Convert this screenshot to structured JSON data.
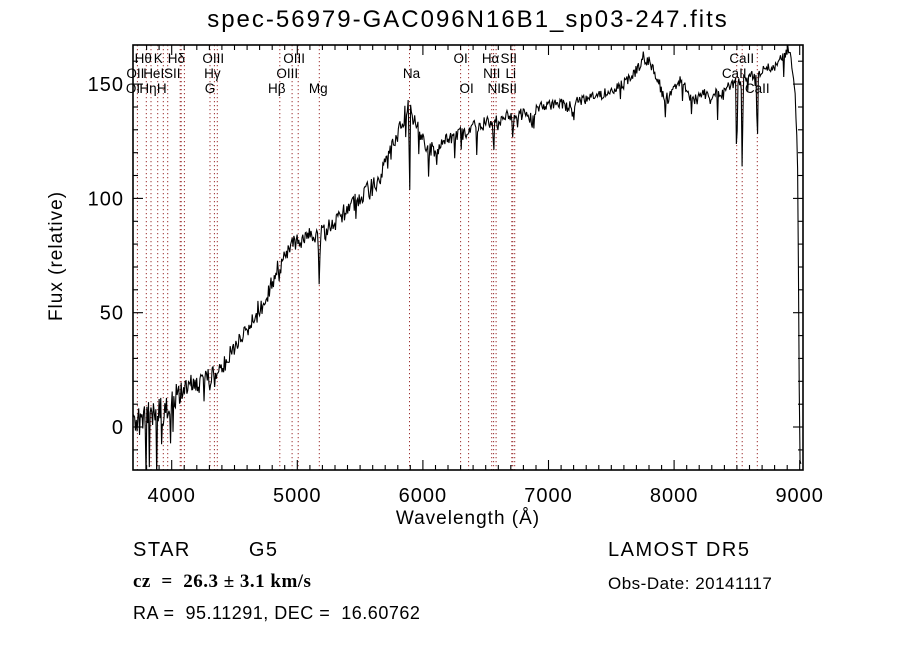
{
  "title": "spec-56979-GAC096N16B1_sp03-247.fits",
  "footer": {
    "class_label": "STAR",
    "subclass_label": "G5",
    "cz_label": "cz  =  26.3 ± 3.1 km/s",
    "radec_label": "RA =  95.11291, DEC =  16.60762",
    "survey_label": "LAMOST DR5",
    "obsdate_label": "Obs-Date: 20141117"
  },
  "chart_data": {
    "type": "line",
    "title": "spec-56979-GAC096N16B1_sp03-247.fits",
    "xlabel": "Wavelength (Å)",
    "ylabel": "Flux (relative)",
    "xlim": [
      3692,
      9026
    ],
    "ylim": [
      -18.8,
      167.1
    ],
    "x_major_ticks": [
      4000,
      5000,
      6000,
      7000,
      8000,
      9000
    ],
    "x_minor_step": 100,
    "y_major_ticks": [
      0,
      50,
      100,
      150
    ],
    "y_minor_step": 10,
    "grid": false,
    "legend": null,
    "series_color": "#000000",
    "marker_color": "#9c2f2f",
    "spectral_lines": [
      {
        "label": "OII",
        "wavelength": 3727,
        "row": 2,
        "dx": -2
      },
      {
        "label": "Hθ",
        "wavelength": 3798,
        "row": 1,
        "dx": -3
      },
      {
        "label": "Hη",
        "wavelength": 3835,
        "row": 3,
        "dx": -3
      },
      {
        "label": "HeI",
        "wavelength": 3889,
        "row": 2,
        "dx": -4
      },
      {
        "label": "K",
        "wavelength": 3933,
        "row": 1,
        "dx": -5
      },
      {
        "label": "H",
        "wavelength": 3968,
        "row": 3,
        "dx": -6
      },
      {
        "label": "SII",
        "wavelength": 4068,
        "row": 2,
        "dx": -8
      },
      {
        "label": "Hδ",
        "wavelength": 4101,
        "row": 1,
        "dx": -8
      },
      {
        "label": "G",
        "wavelength": 4305,
        "row": 3,
        "dx": 0
      },
      {
        "label": "Hγ",
        "wavelength": 4340,
        "row": 2,
        "dx": -2
      },
      {
        "label": "OIII",
        "wavelength": 4363,
        "row": 1,
        "dx": -4
      },
      {
        "label": "Hβ",
        "wavelength": 4861,
        "row": 3,
        "dx": -3
      },
      {
        "label": "OIII",
        "wavelength": 4959,
        "row": 1,
        "dx": 2
      },
      {
        "label": "OIII",
        "wavelength": 5007,
        "row": 2,
        "dx": -11
      },
      {
        "label": "Mg",
        "wavelength": 5175,
        "row": 3,
        "dx": -1
      },
      {
        "label": "Na",
        "wavelength": 5893,
        "row": 2,
        "dx": 2
      },
      {
        "label": "OI",
        "wavelength": 6300,
        "row": 1,
        "dx": 0
      },
      {
        "label": "OI",
        "wavelength": 6364,
        "row": 3,
        "dx": -2
      },
      {
        "label": "NII",
        "wavelength": 6548,
        "row": 2,
        "dx": 0
      },
      {
        "label": "Hα",
        "wavelength": 6563,
        "row": 1,
        "dx": -3
      },
      {
        "label": "NII",
        "wavelength": 6583,
        "row": 3,
        "dx": 0
      },
      {
        "label": "Li",
        "wavelength": 6708,
        "row": 2,
        "dx": -1
      },
      {
        "label": "SII",
        "wavelength": 6716,
        "row": 1,
        "dx": -4
      },
      {
        "label": "SII",
        "wavelength": 6731,
        "row": 3,
        "dx": -6
      },
      {
        "label": "CaII",
        "wavelength": 8498,
        "row": 1,
        "dx": 5
      },
      {
        "label": "CaII",
        "wavelength": 8542,
        "row": 2,
        "dx": -8
      },
      {
        "label": "CaII",
        "wavelength": 8662,
        "row": 3,
        "dx": 0
      },
      {
        "label": "OI",
        "wavelength": 3700,
        "row": 3,
        "dx": -1,
        "line": false
      }
    ],
    "extra_marker_wavelengths": [
      4076
    ],
    "series": [
      {
        "name": "spectrum",
        "sample_step": 6.5,
        "lambda_end": 9010,
        "noise_seed": 20141117,
        "envelope": [
          [
            3692,
            0
          ],
          [
            3720,
            2
          ],
          [
            3760,
            3
          ],
          [
            3800,
            5
          ],
          [
            3840,
            5
          ],
          [
            3880,
            7
          ],
          [
            3920,
            9
          ],
          [
            3960,
            10
          ],
          [
            4000,
            11
          ],
          [
            4040,
            14
          ],
          [
            4080,
            16
          ],
          [
            4120,
            18
          ],
          [
            4160,
            19
          ],
          [
            4200,
            17
          ],
          [
            4240,
            19
          ],
          [
            4280,
            21
          ],
          [
            4320,
            23
          ],
          [
            4360,
            25
          ],
          [
            4400,
            27
          ],
          [
            4440,
            29
          ],
          [
            4480,
            33
          ],
          [
            4520,
            36
          ],
          [
            4560,
            39
          ],
          [
            4600,
            43
          ],
          [
            4640,
            46
          ],
          [
            4680,
            49
          ],
          [
            4720,
            53
          ],
          [
            4760,
            58
          ],
          [
            4800,
            63
          ],
          [
            4840,
            69
          ],
          [
            4880,
            74
          ],
          [
            4920,
            77
          ],
          [
            4960,
            80
          ],
          [
            5000,
            81
          ],
          [
            5040,
            82
          ],
          [
            5080,
            83
          ],
          [
            5120,
            84
          ],
          [
            5160,
            84
          ],
          [
            5200,
            85
          ],
          [
            5240,
            87
          ],
          [
            5280,
            89
          ],
          [
            5320,
            91
          ],
          [
            5360,
            93
          ],
          [
            5400,
            95
          ],
          [
            5440,
            97
          ],
          [
            5480,
            99
          ],
          [
            5520,
            101
          ],
          [
            5560,
            103
          ],
          [
            5600,
            105
          ],
          [
            5640,
            108
          ],
          [
            5680,
            112
          ],
          [
            5720,
            117
          ],
          [
            5760,
            122
          ],
          [
            5800,
            128
          ],
          [
            5840,
            134
          ],
          [
            5875,
            140
          ],
          [
            5910,
            137
          ],
          [
            5950,
            132
          ],
          [
            6000,
            126
          ],
          [
            6050,
            122
          ],
          [
            6100,
            121
          ],
          [
            6150,
            123
          ],
          [
            6200,
            126
          ],
          [
            6250,
            127
          ],
          [
            6300,
            128
          ],
          [
            6350,
            129
          ],
          [
            6400,
            131
          ],
          [
            6450,
            132
          ],
          [
            6500,
            133
          ],
          [
            6550,
            134
          ],
          [
            6600,
            134
          ],
          [
            6650,
            136
          ],
          [
            6700,
            136
          ],
          [
            6750,
            136
          ],
          [
            6800,
            137
          ],
          [
            6850,
            135
          ],
          [
            6900,
            139
          ],
          [
            6950,
            140
          ],
          [
            7000,
            141
          ],
          [
            7050,
            141
          ],
          [
            7100,
            142
          ],
          [
            7150,
            140
          ],
          [
            7200,
            142
          ],
          [
            7250,
            143
          ],
          [
            7300,
            143
          ],
          [
            7350,
            144
          ],
          [
            7400,
            145
          ],
          [
            7450,
            146
          ],
          [
            7500,
            147
          ],
          [
            7550,
            148
          ],
          [
            7600,
            150
          ],
          [
            7650,
            153
          ],
          [
            7700,
            156
          ],
          [
            7750,
            159
          ],
          [
            7790,
            161
          ],
          [
            7830,
            157
          ],
          [
            7870,
            152
          ],
          [
            7910,
            146
          ],
          [
            7950,
            143
          ],
          [
            7990,
            146
          ],
          [
            8030,
            151
          ],
          [
            8070,
            151
          ],
          [
            8110,
            146
          ],
          [
            8150,
            143
          ],
          [
            8200,
            144
          ],
          [
            8250,
            146
          ],
          [
            8300,
            144
          ],
          [
            8350,
            145
          ],
          [
            8400,
            147
          ],
          [
            8450,
            150
          ],
          [
            8500,
            151
          ],
          [
            8550,
            152
          ],
          [
            8600,
            154
          ],
          [
            8660,
            154
          ],
          [
            8700,
            156
          ],
          [
            8750,
            157
          ],
          [
            8800,
            158
          ],
          [
            8850,
            161
          ],
          [
            8880,
            163
          ],
          [
            8915,
            166
          ],
          [
            8940,
            157
          ],
          [
            8965,
            145
          ],
          [
            8985,
            110
          ],
          [
            8995,
            20
          ],
          [
            9002,
            -15
          ],
          [
            9010,
            -16
          ]
        ],
        "absorption_dips": [
          [
            3933,
            8,
            13
          ],
          [
            3968,
            7,
            13
          ],
          [
            4101,
            5,
            12
          ],
          [
            4305,
            4,
            14
          ],
          [
            4340,
            5,
            12
          ],
          [
            4861,
            8,
            12
          ],
          [
            5175,
            27,
            10
          ],
          [
            5894,
            42,
            8
          ],
          [
            6563,
            13,
            9
          ],
          [
            6717,
            12,
            8
          ],
          [
            6870,
            4,
            12
          ],
          [
            7190,
            6,
            16
          ],
          [
            8498,
            38,
            8
          ],
          [
            8542,
            46,
            8
          ],
          [
            8662,
            33,
            9
          ]
        ],
        "noise_profile": [
          [
            3692,
            7
          ],
          [
            3900,
            5.5
          ],
          [
            4100,
            5
          ],
          [
            4400,
            4.2
          ],
          [
            4700,
            4
          ],
          [
            5000,
            3.8
          ],
          [
            5300,
            4
          ],
          [
            5600,
            4.5
          ],
          [
            5900,
            4
          ],
          [
            6100,
            3.2
          ],
          [
            6400,
            3
          ],
          [
            6700,
            2.8
          ],
          [
            7000,
            2.3
          ],
          [
            7300,
            2.2
          ],
          [
            7600,
            2.5
          ],
          [
            7900,
            2.8
          ],
          [
            8200,
            2.6
          ],
          [
            8500,
            2.6
          ],
          [
            8800,
            2.2
          ],
          [
            9010,
            2
          ]
        ]
      }
    ]
  }
}
